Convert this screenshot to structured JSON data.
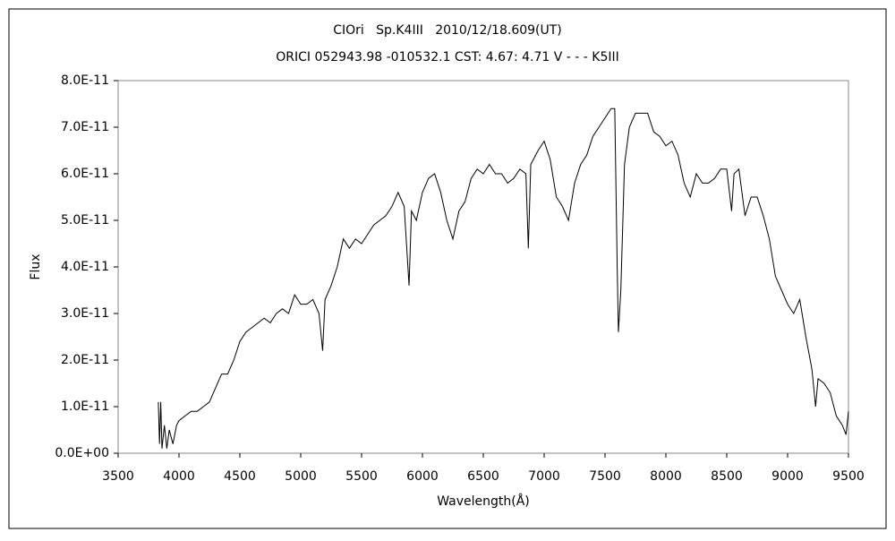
{
  "chart_data": {
    "type": "line",
    "title": "CIOri   Sp.K4III   2010/12/18.609(UT)",
    "subtitle": "ORICI 052943.98 -010532.1 CST: 4.67: 4.71 V - - - K5III",
    "y_label": "Flux",
    "x_label": "Wavelength(Å)",
    "color": "#000000",
    "xlim": [
      3500,
      9500
    ],
    "xticks": [
      3500,
      4000,
      4500,
      5000,
      5500,
      6000,
      6500,
      7000,
      7500,
      8000,
      8500,
      9000,
      9500
    ],
    "ylim": [
      0,
      8e-11
    ],
    "yticks": [
      {
        "value": 0,
        "label": "0.0E+00"
      },
      {
        "value": 1e-11,
        "label": "1.0E-11"
      },
      {
        "value": 2e-11,
        "label": "2.0E-11"
      },
      {
        "value": 3e-11,
        "label": "3.0E-11"
      },
      {
        "value": 4e-11,
        "label": "4.0E-11"
      },
      {
        "value": 5e-11,
        "label": "5.0E-11"
      },
      {
        "value": 6e-11,
        "label": "6.0E-11"
      },
      {
        "value": 7e-11,
        "label": "7.0E-11"
      },
      {
        "value": 8e-11,
        "label": "8.0E-11"
      }
    ],
    "x": [
      3830,
      3840,
      3850,
      3860,
      3880,
      3900,
      3920,
      3950,
      3980,
      4000,
      4050,
      4100,
      4150,
      4200,
      4250,
      4300,
      4350,
      4400,
      4450,
      4500,
      4550,
      4600,
      4650,
      4700,
      4750,
      4800,
      4850,
      4900,
      4950,
      5000,
      5050,
      5100,
      5150,
      5180,
      5200,
      5250,
      5300,
      5350,
      5400,
      5450,
      5500,
      5550,
      5600,
      5650,
      5700,
      5750,
      5800,
      5850,
      5890,
      5910,
      5950,
      6000,
      6050,
      6100,
      6150,
      6200,
      6250,
      6300,
      6350,
      6400,
      6450,
      6500,
      6550,
      6600,
      6650,
      6700,
      6750,
      6800,
      6850,
      6870,
      6890,
      6950,
      7000,
      7050,
      7100,
      7150,
      7200,
      7250,
      7300,
      7350,
      7400,
      7450,
      7500,
      7550,
      7580,
      7600,
      7610,
      7630,
      7660,
      7700,
      7750,
      7800,
      7850,
      7900,
      7950,
      8000,
      8050,
      8100,
      8150,
      8200,
      8250,
      8300,
      8350,
      8400,
      8450,
      8500,
      8540,
      8560,
      8600,
      8650,
      8700,
      8750,
      8800,
      8850,
      8900,
      8950,
      9000,
      9050,
      9100,
      9150,
      9200,
      9230,
      9250,
      9300,
      9350,
      9400,
      9450,
      9480,
      9500
    ],
    "values": [
      1.1e-11,
      2e-12,
      1.1e-11,
      1e-12,
      6e-12,
      1e-12,
      5e-12,
      2e-12,
      6e-12,
      7e-12,
      8e-12,
      9e-12,
      9e-12,
      1e-11,
      1.1e-11,
      1.4e-11,
      1.7e-11,
      1.7e-11,
      2e-11,
      2.4e-11,
      2.6e-11,
      2.7e-11,
      2.8e-11,
      2.9e-11,
      2.8e-11,
      3e-11,
      3.1e-11,
      3e-11,
      3.4e-11,
      3.2e-11,
      3.2e-11,
      3.3e-11,
      3e-11,
      2.2e-11,
      3.3e-11,
      3.6e-11,
      4e-11,
      4.6e-11,
      4.4e-11,
      4.6e-11,
      4.5e-11,
      4.7e-11,
      4.9e-11,
      5e-11,
      5.1e-11,
      5.3e-11,
      5.6e-11,
      5.3e-11,
      3.6e-11,
      5.2e-11,
      5e-11,
      5.6e-11,
      5.9e-11,
      6e-11,
      5.6e-11,
      5e-11,
      4.6e-11,
      5.2e-11,
      5.4e-11,
      5.9e-11,
      6.1e-11,
      6e-11,
      6.2e-11,
      6e-11,
      6e-11,
      5.8e-11,
      5.9e-11,
      6.1e-11,
      6e-11,
      4.4e-11,
      6.2e-11,
      6.5e-11,
      6.7e-11,
      6.3e-11,
      5.5e-11,
      5.3e-11,
      5e-11,
      5.8e-11,
      6.2e-11,
      6.4e-11,
      6.8e-11,
      7e-11,
      7.2e-11,
      7.4e-11,
      7.4e-11,
      4e-11,
      2.6e-11,
      3.5e-11,
      6.2e-11,
      7e-11,
      7.3e-11,
      7.3e-11,
      7.3e-11,
      6.9e-11,
      6.8e-11,
      6.6e-11,
      6.7e-11,
      6.4e-11,
      5.8e-11,
      5.5e-11,
      6e-11,
      5.8e-11,
      5.8e-11,
      5.9e-11,
      6.1e-11,
      6.1e-11,
      5.2e-11,
      6e-11,
      6.1e-11,
      5.1e-11,
      5.5e-11,
      5.5e-11,
      5.1e-11,
      4.6e-11,
      3.8e-11,
      3.5e-11,
      3.2e-11,
      3e-11,
      3.3e-11,
      2.5e-11,
      1.8e-11,
      1e-11,
      1.6e-11,
      1.5e-11,
      1.3e-11,
      8e-12,
      6e-12,
      4e-12,
      9e-12
    ]
  }
}
